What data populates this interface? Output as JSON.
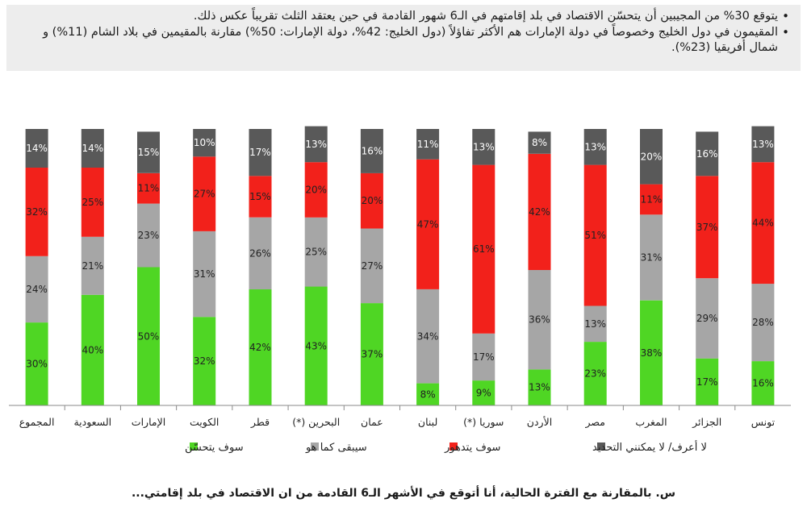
{
  "bullets": [
    "يتوقع 30% من المجيبين أن يتحسّن الاقتصاد في بلد إقامتهم في الـ6 شهور القادمة في حين يعتقد الثلث تقريباً عكس ذلك.",
    "المقيمون في دول الخليج وخصوصاً في دولة الإمارات هم الأكثر تفاؤلاً (دول الخليج: 42%، دولة الإمارات: 50%) مقارنة بالمقيمين في بلاد الشام (11%) و شمال أفريقيا (23%)."
  ],
  "colors": {
    "improve": "#4fd624",
    "same": "#a6a6a6",
    "worse": "#f2211b",
    "dontknow": "#595959"
  },
  "chart_data": {
    "type": "bar",
    "stacked": true,
    "categories": [
      "المجموع",
      "السعودية",
      "الإمارات",
      "الكويت",
      "قطر",
      "البحرين (*)",
      "عمان",
      "لبنان",
      "سوريا (*)",
      "الأردن",
      "مصر",
      "المغرب",
      "الجزائر",
      "تونس"
    ],
    "series": [
      {
        "name": "سوف يتحسّن",
        "color_key": "improve",
        "values": [
          30,
          40,
          50,
          32,
          42,
          43,
          37,
          8,
          9,
          13,
          23,
          38,
          17,
          16
        ]
      },
      {
        "name": "سيبقى كما هو",
        "color_key": "same",
        "values": [
          24,
          21,
          23,
          31,
          26,
          25,
          27,
          34,
          17,
          36,
          13,
          31,
          29,
          28
        ]
      },
      {
        "name": "سوف يتدهور",
        "color_key": "worse",
        "values": [
          32,
          25,
          11,
          27,
          15,
          20,
          20,
          47,
          61,
          42,
          51,
          11,
          37,
          44
        ]
      },
      {
        "name": "لا أعرف/ لا يمكنني التحديد",
        "color_key": "dontknow",
        "values": [
          14,
          14,
          15,
          10,
          17,
          13,
          16,
          11,
          13,
          8,
          13,
          20,
          16,
          13
        ]
      }
    ],
    "legend_order": [
      "لا أعرف/ لا يمكنني التحديد",
      "سوف يتدهور",
      "سيبقى كما هو",
      "سوف يتحسّن"
    ],
    "legend_position": "bottom",
    "value_suffix": "%",
    "ylim": [
      0,
      100
    ],
    "grid": false
  },
  "footnote": "س. بالمقارنة مع الفترة الحالية، أنا أتوقع في الأشهر الـ6 القادمة من ان الاقتصاد في بلد إقامتي..."
}
